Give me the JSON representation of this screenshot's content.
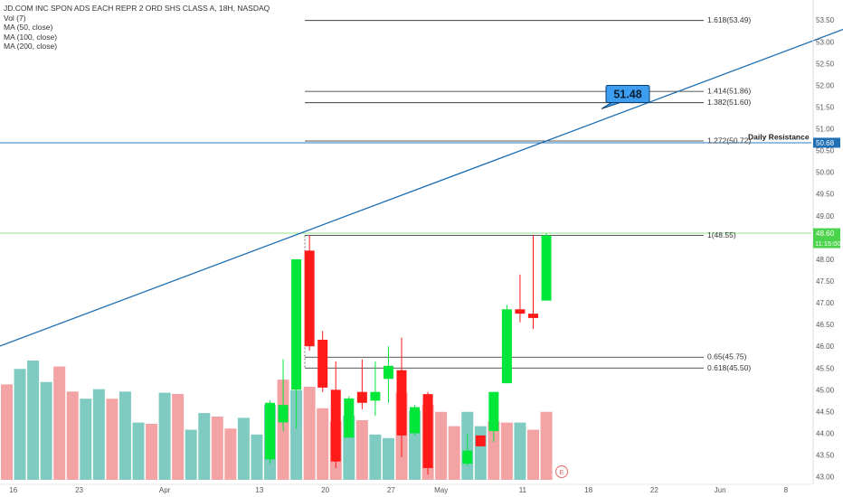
{
  "legend": {
    "title": "JD.COM INC SPON ADS EACH REPR 2 ORD SHS CLASS A, 18H, NASDAQ",
    "lines": [
      "Vol (7)",
      "MA (50, close)",
      "MA (100, close)",
      "MA (200, close)"
    ]
  },
  "colors": {
    "up": "#00e639",
    "down": "#ff1a1a",
    "vol_up": "#7fcbc2",
    "vol_down": "#f3a3a3",
    "trendline": "#1f6fb5",
    "resistance": "#2b7bc0",
    "current": "#8ee58e",
    "current_badge": "#4cd34c",
    "resistance_badge": "#1f6fb5",
    "callout": "#3d9df0"
  },
  "chart_data": {
    "type": "candlestick",
    "y_axis": {
      "range": [
        42.95,
        53.65
      ],
      "ticks": [
        "43.00",
        "43.50",
        "44.00",
        "44.50",
        "45.00",
        "45.50",
        "46.00",
        "46.50",
        "47.00",
        "47.50",
        "48.00",
        "48.50",
        "49.00",
        "49.50",
        "50.00",
        "50.50",
        "51.00",
        "51.50",
        "52.00",
        "52.50",
        "53.00",
        "53.50"
      ]
    },
    "x_axis": {
      "ticks": [
        {
          "slot": 0.5,
          "label": "16"
        },
        {
          "slot": 5.5,
          "label": "23"
        },
        {
          "slot": 12,
          "label": "Apr"
        },
        {
          "slot": 19.2,
          "label": "13"
        },
        {
          "slot": 24.2,
          "label": "20"
        },
        {
          "slot": 29.2,
          "label": "27"
        },
        {
          "slot": 33,
          "label": "May"
        },
        {
          "slot": 39.2,
          "label": "11"
        },
        {
          "slot": 44.2,
          "label": "18"
        },
        {
          "slot": 49.2,
          "label": "22"
        },
        {
          "slot": 54.2,
          "label": "Jun"
        },
        {
          "slot": 59.2,
          "label": "8"
        }
      ]
    },
    "candles": [
      {
        "i": 20,
        "o": 43.4,
        "h": 44.75,
        "l": 43.3,
        "c": 44.7
      },
      {
        "i": 21,
        "o": 44.25,
        "h": 45.7,
        "l": 44.05,
        "c": 44.65
      },
      {
        "i": 22,
        "o": 45.0,
        "h": 48.0,
        "l": 44.1,
        "c": 48.0
      },
      {
        "i": 23,
        "o": 48.2,
        "h": 48.55,
        "l": 45.9,
        "c": 46.0
      },
      {
        "i": 24,
        "o": 46.15,
        "h": 46.35,
        "l": 44.95,
        "c": 45.05
      },
      {
        "i": 25,
        "o": 45.0,
        "h": 45.65,
        "l": 43.2,
        "c": 43.35
      },
      {
        "i": 26,
        "o": 43.9,
        "h": 44.85,
        "l": 43.9,
        "c": 44.8
      },
      {
        "i": 27,
        "o": 44.95,
        "h": 45.7,
        "l": 44.55,
        "c": 44.7
      },
      {
        "i": 28,
        "o": 44.75,
        "h": 45.65,
        "l": 44.4,
        "c": 44.95
      },
      {
        "i": 29,
        "o": 45.25,
        "h": 46.0,
        "l": 44.7,
        "c": 45.55
      },
      {
        "i": 30,
        "o": 45.45,
        "h": 46.2,
        "l": 43.45,
        "c": 43.95
      },
      {
        "i": 31,
        "o": 44.0,
        "h": 44.65,
        "l": 43.95,
        "c": 44.6
      },
      {
        "i": 32,
        "o": 44.9,
        "h": 44.95,
        "l": 43.05,
        "c": 43.2
      },
      {
        "i": 35,
        "o": 43.3,
        "h": 44.0,
        "l": 43.25,
        "c": 43.6
      },
      {
        "i": 36,
        "o": 43.95,
        "h": 43.95,
        "l": 43.7,
        "c": 43.7
      },
      {
        "i": 37,
        "o": 44.05,
        "h": 44.95,
        "l": 43.8,
        "c": 44.95
      },
      {
        "i": 38,
        "o": 45.15,
        "h": 46.95,
        "l": 45.15,
        "c": 46.85
      },
      {
        "i": 39,
        "o": 46.85,
        "h": 47.65,
        "l": 46.55,
        "c": 46.75
      },
      {
        "i": 40,
        "o": 46.75,
        "h": 48.55,
        "l": 46.4,
        "c": 46.65
      },
      {
        "i": 41,
        "o": 47.05,
        "h": 48.6,
        "l": 47.05,
        "c": 48.55
      }
    ],
    "volume_bars": [
      {
        "i": 0,
        "v": 0.8,
        "dir": "down"
      },
      {
        "i": 1,
        "v": 0.93,
        "dir": "up"
      },
      {
        "i": 2,
        "v": 1.0,
        "dir": "up"
      },
      {
        "i": 3,
        "v": 0.82,
        "dir": "up"
      },
      {
        "i": 4,
        "v": 0.95,
        "dir": "down"
      },
      {
        "i": 5,
        "v": 0.74,
        "dir": "down"
      },
      {
        "i": 6,
        "v": 0.68,
        "dir": "up"
      },
      {
        "i": 7,
        "v": 0.76,
        "dir": "up"
      },
      {
        "i": 8,
        "v": 0.68,
        "dir": "down"
      },
      {
        "i": 9,
        "v": 0.74,
        "dir": "up"
      },
      {
        "i": 10,
        "v": 0.48,
        "dir": "up"
      },
      {
        "i": 11,
        "v": 0.47,
        "dir": "down"
      },
      {
        "i": 12,
        "v": 0.73,
        "dir": "up"
      },
      {
        "i": 13,
        "v": 0.72,
        "dir": "down"
      },
      {
        "i": 14,
        "v": 0.42,
        "dir": "up"
      },
      {
        "i": 15,
        "v": 0.56,
        "dir": "up"
      },
      {
        "i": 16,
        "v": 0.53,
        "dir": "down"
      },
      {
        "i": 17,
        "v": 0.43,
        "dir": "down"
      },
      {
        "i": 18,
        "v": 0.52,
        "dir": "up"
      },
      {
        "i": 19,
        "v": 0.38,
        "dir": "up"
      },
      {
        "i": 20,
        "v": 0.63,
        "dir": "up"
      },
      {
        "i": 21,
        "v": 0.84,
        "dir": "down"
      },
      {
        "i": 22,
        "v": 0.75,
        "dir": "up"
      },
      {
        "i": 23,
        "v": 0.78,
        "dir": "down"
      },
      {
        "i": 24,
        "v": 0.6,
        "dir": "down"
      },
      {
        "i": 25,
        "v": 0.49,
        "dir": "down"
      },
      {
        "i": 26,
        "v": 0.54,
        "dir": "up"
      },
      {
        "i": 27,
        "v": 0.5,
        "dir": "down"
      },
      {
        "i": 28,
        "v": 0.38,
        "dir": "up"
      },
      {
        "i": 29,
        "v": 0.35,
        "dir": "up"
      },
      {
        "i": 30,
        "v": 0.73,
        "dir": "down"
      },
      {
        "i": 31,
        "v": 0.58,
        "dir": "up"
      },
      {
        "i": 32,
        "v": 0.63,
        "dir": "down"
      },
      {
        "i": 33,
        "v": 0.57,
        "dir": "down"
      },
      {
        "i": 34,
        "v": 0.45,
        "dir": "down"
      },
      {
        "i": 35,
        "v": 0.57,
        "dir": "up"
      },
      {
        "i": 36,
        "v": 0.45,
        "dir": "up"
      },
      {
        "i": 37,
        "v": 0.49,
        "dir": "down"
      },
      {
        "i": 38,
        "v": 0.48,
        "dir": "down"
      },
      {
        "i": 39,
        "v": 0.48,
        "dir": "up"
      },
      {
        "i": 40,
        "v": 0.42,
        "dir": "down"
      },
      {
        "i": 41,
        "v": 0.57,
        "dir": "down"
      }
    ],
    "fib_levels": [
      {
        "label": "1.618(53.49)",
        "price": 53.49
      },
      {
        "label": "1.414(51.86)",
        "price": 51.86
      },
      {
        "label": "1.382(51.60)",
        "price": 51.6
      },
      {
        "label": "1.272(50.72)",
        "price": 50.72
      },
      {
        "label": "1(48.55)",
        "price": 48.55
      },
      {
        "label": "0.65(45.75)",
        "price": 45.75
      },
      {
        "label": "0.618(45.50)",
        "price": 45.5
      }
    ],
    "trendline": {
      "from": {
        "i": -1,
        "price": 45.95
      },
      "to": {
        "i": 65,
        "price": 53.45
      }
    },
    "horizontal_lines": [
      {
        "price": 50.68,
        "kind": "resistance",
        "label": "Daily Resistance",
        "badge": "50.68"
      },
      {
        "price": 48.6,
        "kind": "current",
        "badge": "48.60",
        "badge2": "11:15:00"
      }
    ],
    "callout": {
      "text": "51.48",
      "price": 51.48
    },
    "event_marker": "E"
  }
}
